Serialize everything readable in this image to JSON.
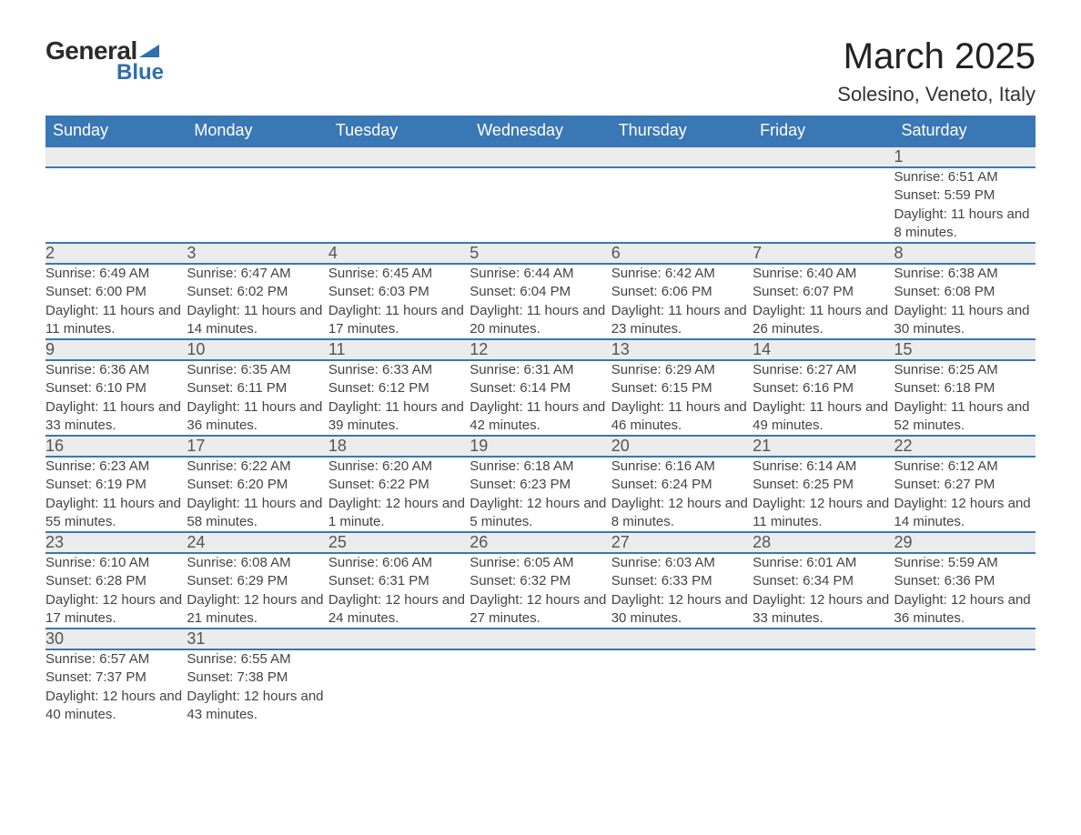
{
  "colors": {
    "header_bg": "#3a77b5",
    "header_text": "#ffffff",
    "daynum_bg": "#ececec",
    "daynum_text": "#555555",
    "detail_text": "#444444",
    "row_divider": "#3a77b5",
    "brand_blue": "#2f6eb0",
    "page_bg": "#ffffff"
  },
  "logo": {
    "line1": "General",
    "line2": "Blue"
  },
  "title": "March 2025",
  "location": "Solesino, Veneto, Italy",
  "weekday_headers": [
    "Sunday",
    "Monday",
    "Tuesday",
    "Wednesday",
    "Thursday",
    "Friday",
    "Saturday"
  ],
  "weeks": [
    {
      "days": [
        null,
        null,
        null,
        null,
        null,
        null,
        {
          "n": "1",
          "sunrise": "Sunrise: 6:51 AM",
          "sunset": "Sunset: 5:59 PM",
          "daylight": "Daylight: 11 hours and 8 minutes."
        }
      ]
    },
    {
      "days": [
        {
          "n": "2",
          "sunrise": "Sunrise: 6:49 AM",
          "sunset": "Sunset: 6:00 PM",
          "daylight": "Daylight: 11 hours and 11 minutes."
        },
        {
          "n": "3",
          "sunrise": "Sunrise: 6:47 AM",
          "sunset": "Sunset: 6:02 PM",
          "daylight": "Daylight: 11 hours and 14 minutes."
        },
        {
          "n": "4",
          "sunrise": "Sunrise: 6:45 AM",
          "sunset": "Sunset: 6:03 PM",
          "daylight": "Daylight: 11 hours and 17 minutes."
        },
        {
          "n": "5",
          "sunrise": "Sunrise: 6:44 AM",
          "sunset": "Sunset: 6:04 PM",
          "daylight": "Daylight: 11 hours and 20 minutes."
        },
        {
          "n": "6",
          "sunrise": "Sunrise: 6:42 AM",
          "sunset": "Sunset: 6:06 PM",
          "daylight": "Daylight: 11 hours and 23 minutes."
        },
        {
          "n": "7",
          "sunrise": "Sunrise: 6:40 AM",
          "sunset": "Sunset: 6:07 PM",
          "daylight": "Daylight: 11 hours and 26 minutes."
        },
        {
          "n": "8",
          "sunrise": "Sunrise: 6:38 AM",
          "sunset": "Sunset: 6:08 PM",
          "daylight": "Daylight: 11 hours and 30 minutes."
        }
      ]
    },
    {
      "days": [
        {
          "n": "9",
          "sunrise": "Sunrise: 6:36 AM",
          "sunset": "Sunset: 6:10 PM",
          "daylight": "Daylight: 11 hours and 33 minutes."
        },
        {
          "n": "10",
          "sunrise": "Sunrise: 6:35 AM",
          "sunset": "Sunset: 6:11 PM",
          "daylight": "Daylight: 11 hours and 36 minutes."
        },
        {
          "n": "11",
          "sunrise": "Sunrise: 6:33 AM",
          "sunset": "Sunset: 6:12 PM",
          "daylight": "Daylight: 11 hours and 39 minutes."
        },
        {
          "n": "12",
          "sunrise": "Sunrise: 6:31 AM",
          "sunset": "Sunset: 6:14 PM",
          "daylight": "Daylight: 11 hours and 42 minutes."
        },
        {
          "n": "13",
          "sunrise": "Sunrise: 6:29 AM",
          "sunset": "Sunset: 6:15 PM",
          "daylight": "Daylight: 11 hours and 46 minutes."
        },
        {
          "n": "14",
          "sunrise": "Sunrise: 6:27 AM",
          "sunset": "Sunset: 6:16 PM",
          "daylight": "Daylight: 11 hours and 49 minutes."
        },
        {
          "n": "15",
          "sunrise": "Sunrise: 6:25 AM",
          "sunset": "Sunset: 6:18 PM",
          "daylight": "Daylight: 11 hours and 52 minutes."
        }
      ]
    },
    {
      "days": [
        {
          "n": "16",
          "sunrise": "Sunrise: 6:23 AM",
          "sunset": "Sunset: 6:19 PM",
          "daylight": "Daylight: 11 hours and 55 minutes."
        },
        {
          "n": "17",
          "sunrise": "Sunrise: 6:22 AM",
          "sunset": "Sunset: 6:20 PM",
          "daylight": "Daylight: 11 hours and 58 minutes."
        },
        {
          "n": "18",
          "sunrise": "Sunrise: 6:20 AM",
          "sunset": "Sunset: 6:22 PM",
          "daylight": "Daylight: 12 hours and 1 minute."
        },
        {
          "n": "19",
          "sunrise": "Sunrise: 6:18 AM",
          "sunset": "Sunset: 6:23 PM",
          "daylight": "Daylight: 12 hours and 5 minutes."
        },
        {
          "n": "20",
          "sunrise": "Sunrise: 6:16 AM",
          "sunset": "Sunset: 6:24 PM",
          "daylight": "Daylight: 12 hours and 8 minutes."
        },
        {
          "n": "21",
          "sunrise": "Sunrise: 6:14 AM",
          "sunset": "Sunset: 6:25 PM",
          "daylight": "Daylight: 12 hours and 11 minutes."
        },
        {
          "n": "22",
          "sunrise": "Sunrise: 6:12 AM",
          "sunset": "Sunset: 6:27 PM",
          "daylight": "Daylight: 12 hours and 14 minutes."
        }
      ]
    },
    {
      "days": [
        {
          "n": "23",
          "sunrise": "Sunrise: 6:10 AM",
          "sunset": "Sunset: 6:28 PM",
          "daylight": "Daylight: 12 hours and 17 minutes."
        },
        {
          "n": "24",
          "sunrise": "Sunrise: 6:08 AM",
          "sunset": "Sunset: 6:29 PM",
          "daylight": "Daylight: 12 hours and 21 minutes."
        },
        {
          "n": "25",
          "sunrise": "Sunrise: 6:06 AM",
          "sunset": "Sunset: 6:31 PM",
          "daylight": "Daylight: 12 hours and 24 minutes."
        },
        {
          "n": "26",
          "sunrise": "Sunrise: 6:05 AM",
          "sunset": "Sunset: 6:32 PM",
          "daylight": "Daylight: 12 hours and 27 minutes."
        },
        {
          "n": "27",
          "sunrise": "Sunrise: 6:03 AM",
          "sunset": "Sunset: 6:33 PM",
          "daylight": "Daylight: 12 hours and 30 minutes."
        },
        {
          "n": "28",
          "sunrise": "Sunrise: 6:01 AM",
          "sunset": "Sunset: 6:34 PM",
          "daylight": "Daylight: 12 hours and 33 minutes."
        },
        {
          "n": "29",
          "sunrise": "Sunrise: 5:59 AM",
          "sunset": "Sunset: 6:36 PM",
          "daylight": "Daylight: 12 hours and 36 minutes."
        }
      ]
    },
    {
      "days": [
        {
          "n": "30",
          "sunrise": "Sunrise: 6:57 AM",
          "sunset": "Sunset: 7:37 PM",
          "daylight": "Daylight: 12 hours and 40 minutes."
        },
        {
          "n": "31",
          "sunrise": "Sunrise: 6:55 AM",
          "sunset": "Sunset: 7:38 PM",
          "daylight": "Daylight: 12 hours and 43 minutes."
        },
        null,
        null,
        null,
        null,
        null
      ]
    }
  ]
}
